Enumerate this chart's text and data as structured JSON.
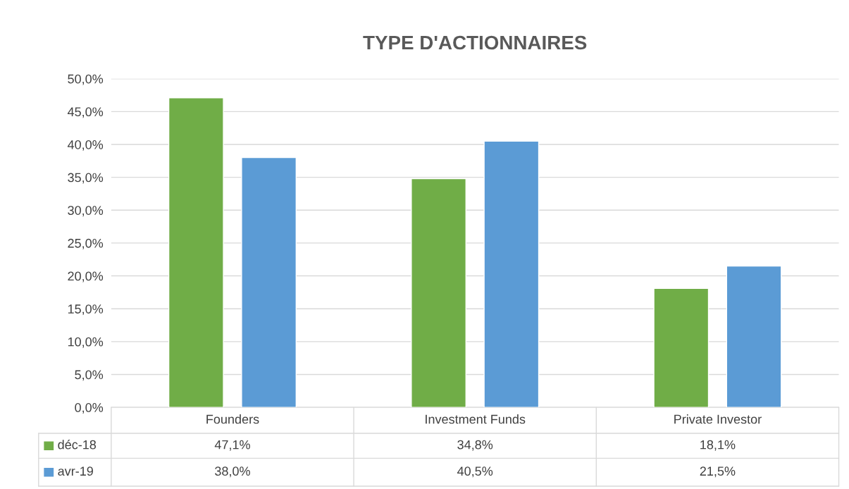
{
  "chart_data": {
    "type": "bar",
    "title": "TYPE D'ACTIONNAIRES",
    "categories": [
      "Founders",
      "Investment Funds",
      "Private Investor"
    ],
    "series": [
      {
        "name": "déc-18",
        "color": "#70ad47",
        "values": [
          47.1,
          34.8,
          18.1
        ],
        "value_labels": [
          "47,1%",
          "34,8%",
          "18,1%"
        ]
      },
      {
        "name": "avr-19",
        "color": "#5b9bd5",
        "values": [
          38.0,
          40.5,
          21.5
        ],
        "value_labels": [
          "38,0%",
          "40,5%",
          "21,5%"
        ]
      }
    ],
    "ylim": [
      0,
      50
    ],
    "yticks": [
      {
        "value": 0,
        "label": "0,0%"
      },
      {
        "value": 5,
        "label": "5,0%"
      },
      {
        "value": 10,
        "label": "10,0%"
      },
      {
        "value": 15,
        "label": "15,0%"
      },
      {
        "value": 20,
        "label": "20,0%"
      },
      {
        "value": 25,
        "label": "25,0%"
      },
      {
        "value": 30,
        "label": "30,0%"
      },
      {
        "value": 35,
        "label": "35,0%"
      },
      {
        "value": 40,
        "label": "40,0%"
      },
      {
        "value": 45,
        "label": "45,0%"
      },
      {
        "value": 50,
        "label": "50,0%"
      }
    ],
    "grid": "y",
    "legend": "bottom"
  }
}
